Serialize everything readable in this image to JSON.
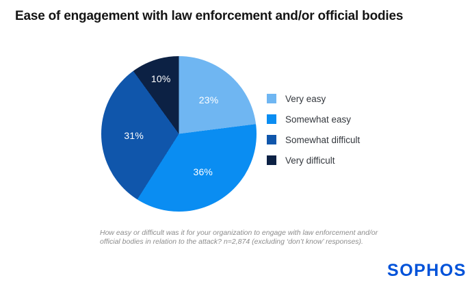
{
  "chart_data": {
    "type": "pie",
    "title": "Ease of engagement with law enforcement and/or official bodies",
    "slices": [
      {
        "label": "Very easy",
        "value": 23,
        "display": "23%",
        "color": "#6FB6F2"
      },
      {
        "label": "Somewhat easy",
        "value": 36,
        "display": "36%",
        "color": "#0A8DF2"
      },
      {
        "label": "Somewhat difficult",
        "value": 31,
        "display": "31%",
        "color": "#1056AB"
      },
      {
        "label": "Very difficult",
        "value": 10,
        "display": "10%",
        "color": "#0C2144"
      }
    ],
    "start_angle_deg": 0,
    "direction": "clockwise",
    "value_labels": "percent-inside-white",
    "legend_position": "right",
    "background": "#FFFFFF"
  },
  "footnote": {
    "lines": [
      "How easy or difficult was it for your organization to engage with law enforcement and/or",
      "official bodies in relation to the attack? n=2,874 (excluding ‘don’t know’ responses)."
    ]
  },
  "logo": {
    "text": "SOPHOS",
    "color": "#0052D9"
  }
}
